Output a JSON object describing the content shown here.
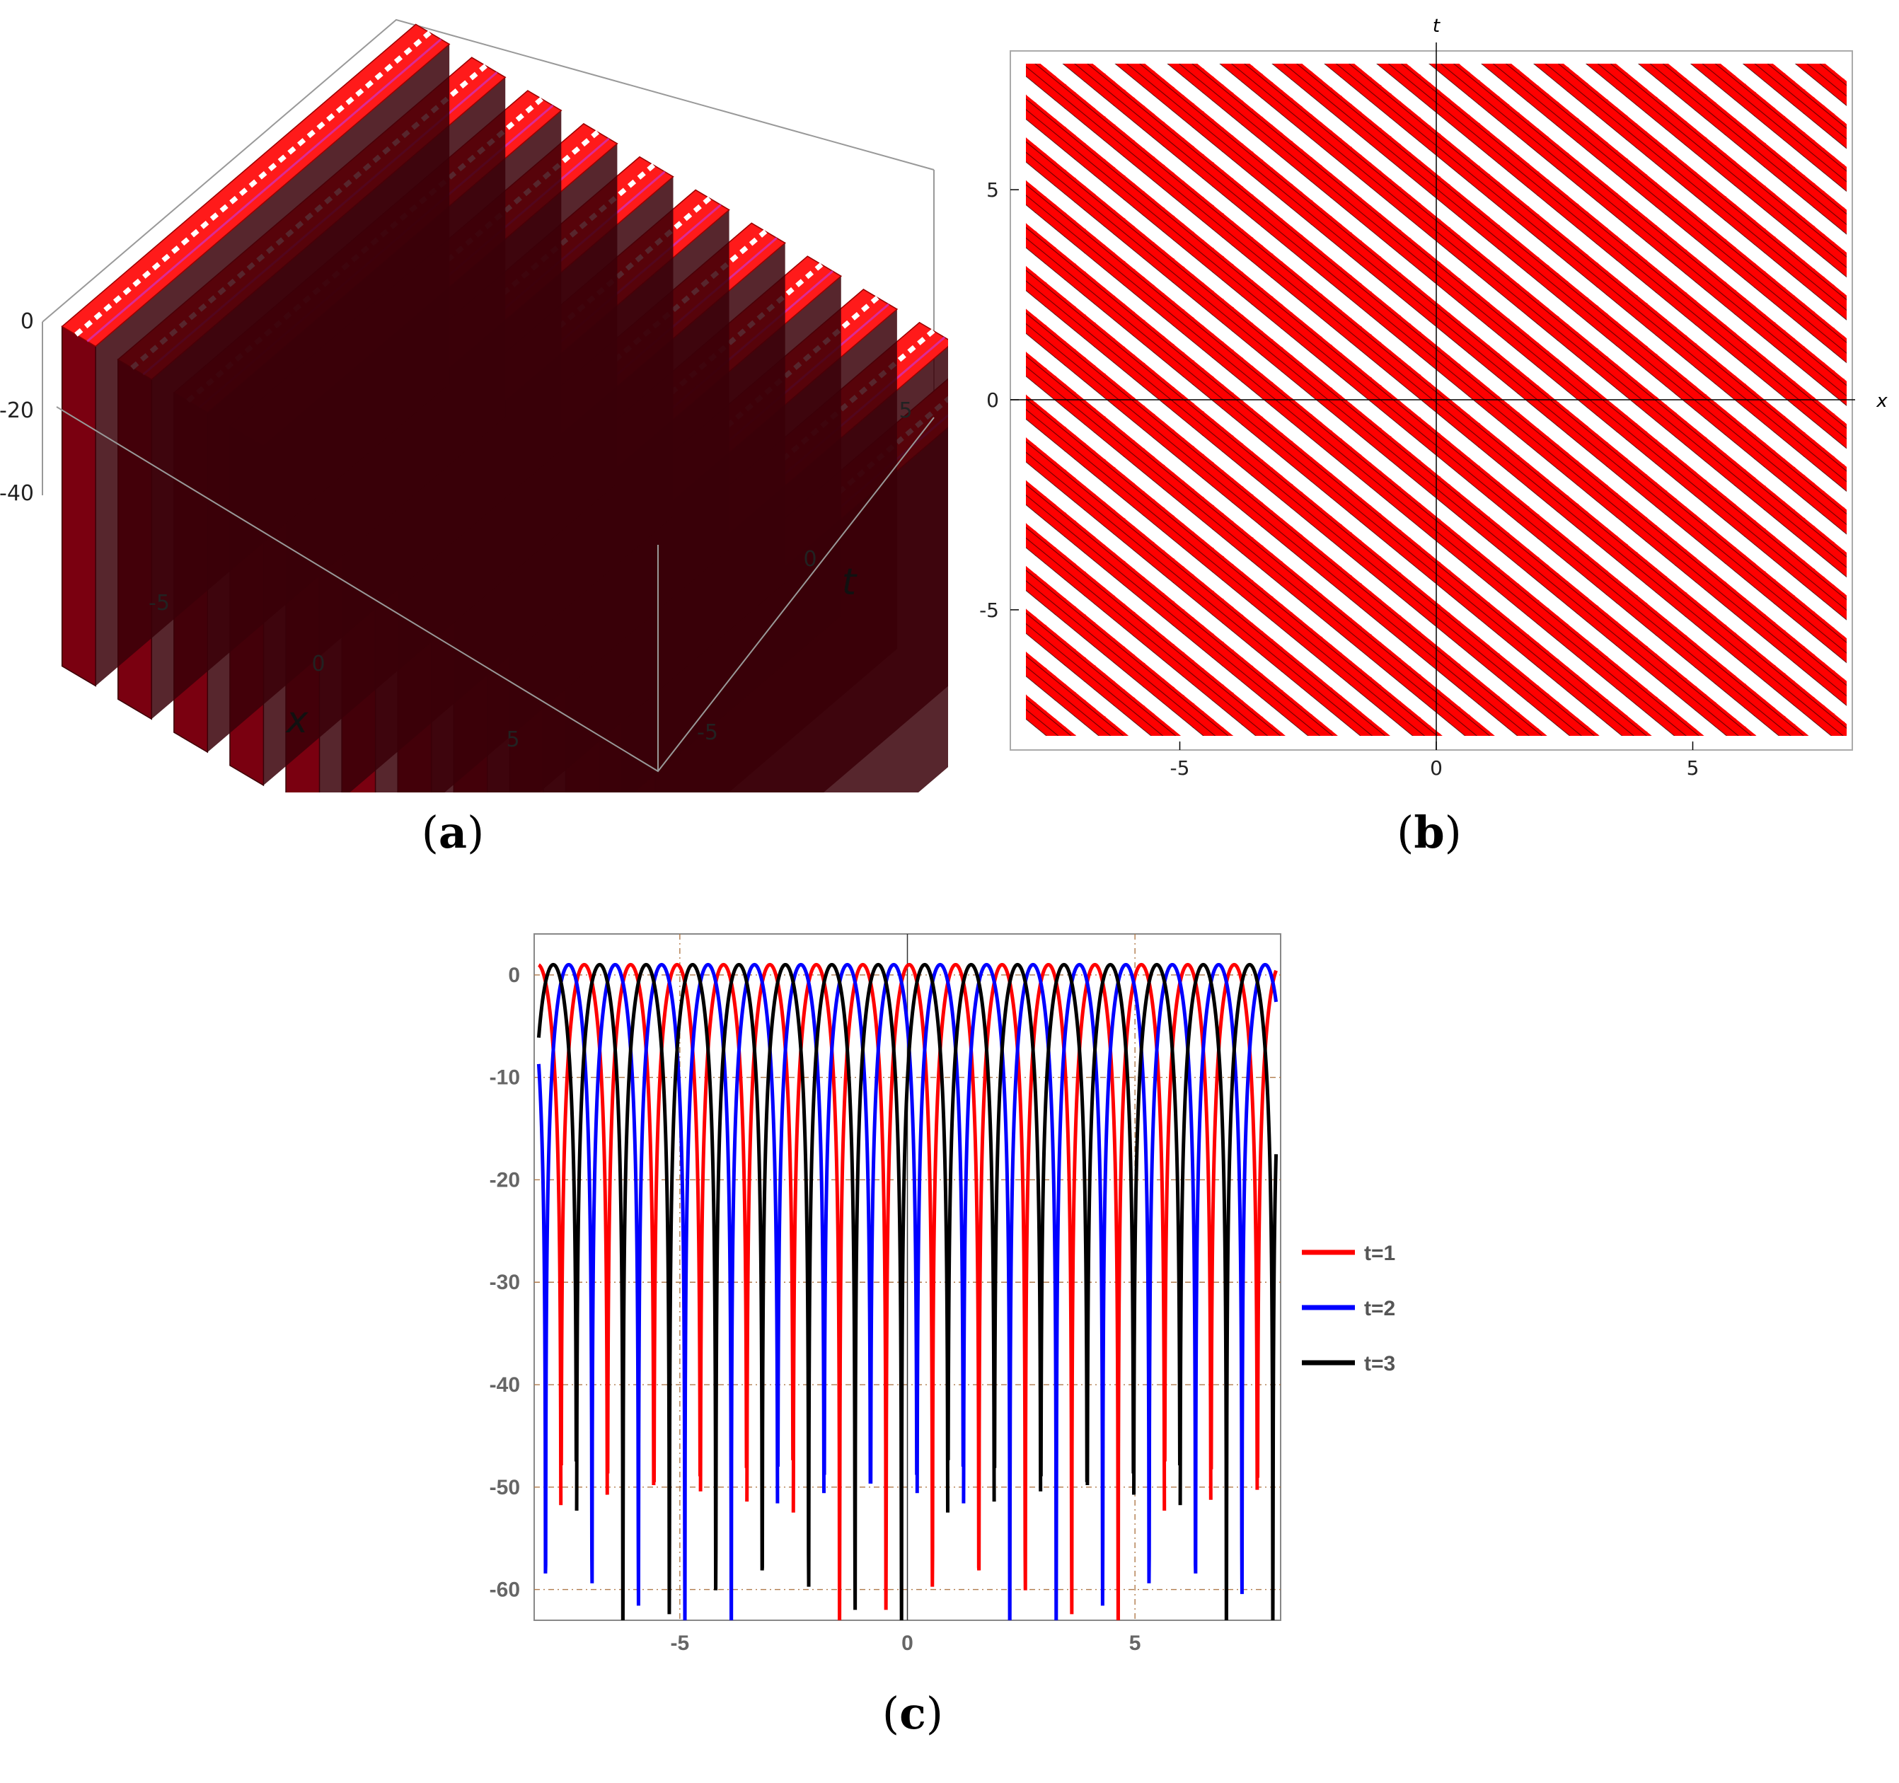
{
  "panels": {
    "a": {
      "caption_open": "(",
      "caption_letter": "a",
      "caption_close": ")"
    },
    "b": {
      "caption_open": "(",
      "caption_letter": "b",
      "caption_close": ")"
    },
    "c": {
      "caption_open": "(",
      "caption_letter": "c",
      "caption_close": ")"
    }
  },
  "chart_data": [
    {
      "id": "a",
      "type": "surface3d",
      "xlabel": "x",
      "ylabel": "t",
      "zlabel": "",
      "x_ticks": [
        "-5",
        "0",
        "5"
      ],
      "t_ticks": [
        "-5",
        "0",
        "5"
      ],
      "z_ticks": [
        "0",
        "-20",
        "-40"
      ],
      "xlim": [
        -8,
        8
      ],
      "tlim": [
        -8,
        8
      ],
      "zlim": [
        -50,
        1
      ],
      "ridge_count": 11,
      "colors": {
        "surface": "#ff1a1a",
        "ridge_top": "#ff4d6a",
        "side": "#7a0010",
        "shadow": "#3a0008",
        "accent": "#cc33cc"
      }
    },
    {
      "id": "b",
      "type": "density",
      "xlabel": "x",
      "ylabel": "t",
      "x_ticks": [
        "-5",
        "0",
        "5"
      ],
      "y_ticks": [
        "5",
        "0",
        "-5"
      ],
      "xlim": [
        -8,
        8
      ],
      "ylim": [
        -8,
        8
      ],
      "band_slope": -1,
      "band_period": 1.02,
      "colors": {
        "band": "#ff0000",
        "gap": "#ffffff",
        "contour": "#000000"
      }
    },
    {
      "id": "c",
      "type": "line",
      "x_ticks": [
        "-5",
        "0",
        "5"
      ],
      "y_ticks": [
        "0",
        "-10",
        "-20",
        "-30",
        "-40",
        "-50",
        "-60"
      ],
      "xlim": [
        -8.2,
        8.2
      ],
      "ylim": [
        -63,
        4
      ],
      "grid": true,
      "legend_position": "right",
      "series": [
        {
          "name": "t=1",
          "color": "#ff0000",
          "phase": 0.55,
          "period": 1.02
        },
        {
          "name": "t=2",
          "color": "#0000ff",
          "phase": 0.21,
          "period": 1.02
        },
        {
          "name": "t=3",
          "color": "#000000",
          "phase": 0.89,
          "period": 1.02
        }
      ]
    }
  ]
}
